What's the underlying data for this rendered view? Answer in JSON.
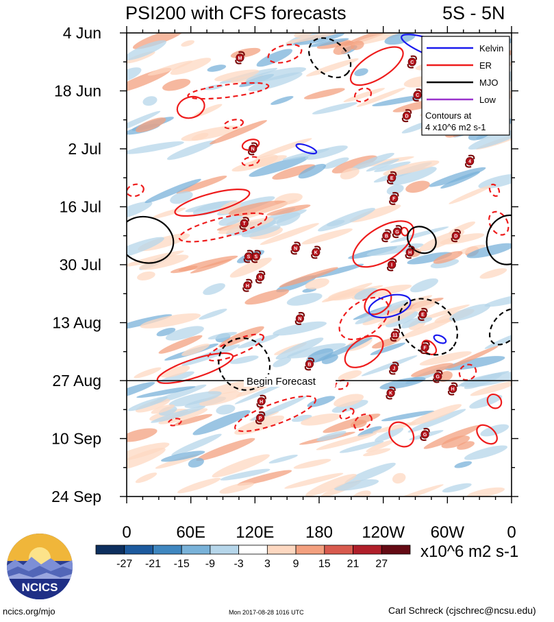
{
  "chart_data": {
    "type": "heatmap",
    "title": "PSI200 with CFS forecasts",
    "region": "5S - 5N",
    "x_tick_labels": [
      "0",
      "60E",
      "120E",
      "180",
      "120W",
      "60W",
      "0"
    ],
    "x_range_deg_east": [
      0,
      360
    ],
    "y_tick_labels": [
      "4 Jun",
      "18 Jun",
      "2 Jul",
      "16 Jul",
      "30 Jul",
      "13 Aug",
      "27 Aug",
      "10 Sep",
      "24 Sep"
    ],
    "y_range_day_offset": [
      0,
      112
    ],
    "forecast_start_day": 84,
    "forecast_label": "Begin Forecast",
    "contour_note": [
      "Contours at",
      "4 x10^6 m2 s-1"
    ],
    "legend": [
      {
        "name": "Kelvin",
        "color": "#1a1aee"
      },
      {
        "name": "ER",
        "color": "#ee1c1c"
      },
      {
        "name": "MJO",
        "color": "#000000"
      },
      {
        "name": "Low",
        "color": "#9932cc"
      }
    ],
    "colorbar": {
      "ticks": [
        "-27",
        "-21",
        "-15",
        "-9",
        "-3",
        "3",
        "9",
        "15",
        "21",
        "27"
      ],
      "units": "x10^6 m2 s-1",
      "colors": [
        "#0d2f5e",
        "#1d5a9e",
        "#3f87c0",
        "#79b2d9",
        "#b6d6ea",
        "#ffffff",
        "#fdd8c1",
        "#f3a07f",
        "#d85a4e",
        "#b01f2a",
        "#640a14"
      ]
    },
    "storms": [
      {
        "label": "M",
        "lon": 106,
        "day": 6
      },
      {
        "label": "C",
        "lon": 267,
        "day": 7
      },
      {
        "label": "C",
        "lon": 272,
        "day": 15
      },
      {
        "label": "D",
        "lon": 262,
        "day": 20
      },
      {
        "label": "N",
        "lon": 118,
        "day": 28
      },
      {
        "label": "4",
        "lon": 321,
        "day": 31
      },
      {
        "label": "E",
        "lon": 248,
        "day": 35
      },
      {
        "label": "F",
        "lon": 250,
        "day": 40
      },
      {
        "label": "T",
        "lon": 110,
        "day": 46
      },
      {
        "label": "G",
        "lon": 253,
        "day": 48
      },
      {
        "label": "B",
        "lon": 243,
        "day": 49
      },
      {
        "label": "D",
        "lon": 308,
        "day": 49
      },
      {
        "label": "N",
        "lon": 158,
        "day": 52
      },
      {
        "label": "K",
        "lon": 177,
        "day": 53
      },
      {
        "label": "H",
        "lon": 265,
        "day": 53
      },
      {
        "label": "S",
        "lon": 114,
        "day": 54
      },
      {
        "label": "S",
        "lon": 121,
        "day": 54
      },
      {
        "label": "I",
        "lon": 248,
        "day": 56
      },
      {
        "label": "N",
        "lon": 125,
        "day": 59
      },
      {
        "label": "H",
        "lon": 113,
        "day": 61
      },
      {
        "label": "E",
        "lon": 277,
        "day": 68
      },
      {
        "label": "N",
        "lon": 162,
        "day": 69
      },
      {
        "label": "11",
        "lon": 251,
        "day": 73
      },
      {
        "label": "F",
        "lon": 279,
        "day": 76
      },
      {
        "label": "B",
        "lon": 171,
        "day": 80
      },
      {
        "label": "J",
        "lon": 250,
        "day": 81
      },
      {
        "label": "G",
        "lon": 291,
        "day": 83
      },
      {
        "label": "H",
        "lon": 305,
        "day": 86
      },
      {
        "label": "K",
        "lon": 247,
        "day": 87
      },
      {
        "label": "H",
        "lon": 126,
        "day": 89
      },
      {
        "label": "P",
        "lon": 125,
        "day": 93
      },
      {
        "label": "G",
        "lon": 279,
        "day": 97
      }
    ]
  },
  "footer": {
    "logo_text": "NCICS",
    "site": "ncics.org/mjo",
    "timestamp": "Mon 2017-08-28 1016 UTC",
    "author": "Carl Schreck (cjschrec@ncsu.edu)"
  }
}
